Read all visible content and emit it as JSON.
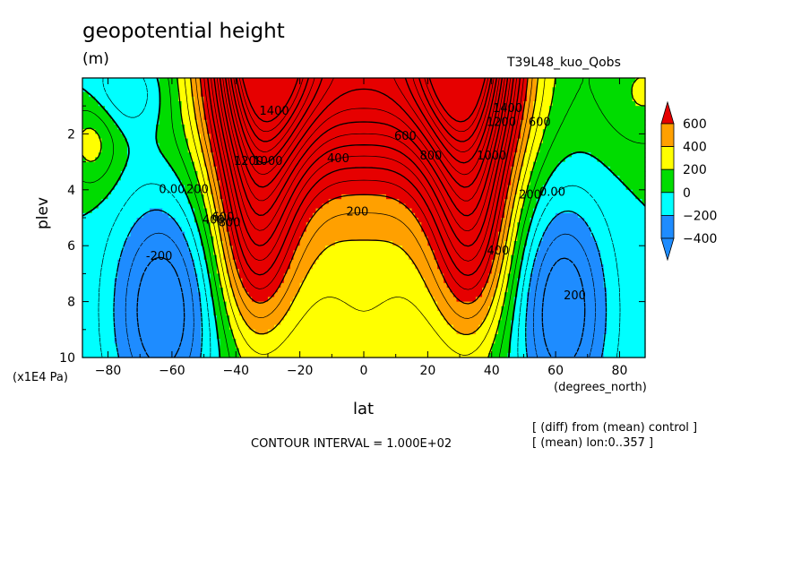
{
  "chart_data": {
    "type": "heatmap",
    "title": "geopotential height",
    "units": "(m)",
    "run_label": "T39L48_kuo_Qobs",
    "xlabel": "lat",
    "x_unit": "(degrees_north)",
    "ylabel": "plev",
    "y_unit": "(x1E4 Pa)",
    "x_ticks": [
      -80,
      -60,
      -40,
      -20,
      0,
      20,
      40,
      60,
      80
    ],
    "x_tick_labels": [
      "−80",
      "−60",
      "−40",
      "−20",
      "0",
      "20",
      "40",
      "60",
      "80"
    ],
    "xlim": [
      -88,
      88
    ],
    "y_ticks": [
      2,
      4,
      6,
      8,
      10
    ],
    "y_tick_labels": [
      "2",
      "4",
      "6",
      "8",
      "10"
    ],
    "ylim": [
      0,
      10
    ],
    "y_inverted": true,
    "contour_interval_text": "CONTOUR INTERVAL = 1.000E+02",
    "diff_text": "[ (diff) from (mean) control ]",
    "mean_text": "[ (mean) lon:0..357 ]",
    "colorbar": {
      "labels": [
        "600",
        "400",
        "200",
        "0",
        "−200",
        "−400"
      ],
      "levels": [
        -400,
        -200,
        0,
        200,
        400,
        600
      ],
      "colors": [
        "#1e8cff",
        "#00ffff",
        "#00dc00",
        "#ffff00",
        "#ffa000",
        "#e60000"
      ]
    },
    "contour_labels": [
      {
        "text": "1400",
        "lat": -28,
        "plev": 1.2
      },
      {
        "text": "1200",
        "lat": -36,
        "plev": 3.0
      },
      {
        "text": "1000",
        "lat": -30,
        "plev": 3.0
      },
      {
        "text": "800",
        "lat": -42,
        "plev": 5.2
      },
      {
        "text": "600",
        "lat": -44,
        "plev": 5.0
      },
      {
        "text": "400",
        "lat": -47,
        "plev": 5.1
      },
      {
        "text": "200",
        "lat": -52,
        "plev": 4.0
      },
      {
        "text": "0.00",
        "lat": -60,
        "plev": 4.0
      },
      {
        "text": "-200",
        "lat": -64,
        "plev": 6.4
      },
      {
        "text": "400",
        "lat": -8,
        "plev": 2.9
      },
      {
        "text": "200",
        "lat": -2,
        "plev": 4.8
      },
      {
        "text": "600",
        "lat": 13,
        "plev": 2.1
      },
      {
        "text": "800",
        "lat": 21,
        "plev": 2.8
      },
      {
        "text": "1000",
        "lat": 40,
        "plev": 2.8
      },
      {
        "text": "1200",
        "lat": 43,
        "plev": 1.6
      },
      {
        "text": "1400",
        "lat": 45,
        "plev": 1.1
      },
      {
        "text": "600",
        "lat": 55,
        "plev": 1.6
      },
      {
        "text": "400",
        "lat": 42,
        "plev": 6.2
      },
      {
        "text": "200",
        "lat": 52,
        "plev": 4.2
      },
      {
        "text": "0.00",
        "lat": 59,
        "plev": 4.1
      },
      {
        "text": "200",
        "lat": 66,
        "plev": 7.8
      }
    ],
    "field_model": {
      "description": "zonal-mean geopotential height difference field (m), lat vs pressure level",
      "peak_value_approx": 2000,
      "min_value_approx": -500
    }
  }
}
